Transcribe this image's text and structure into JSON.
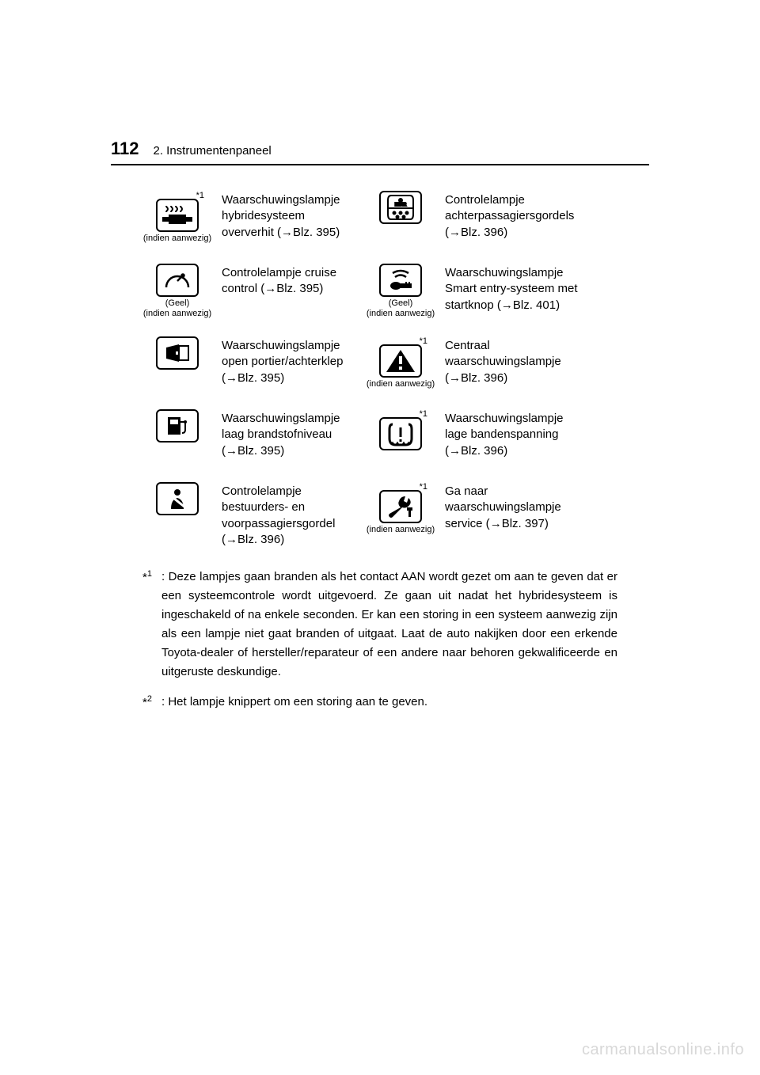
{
  "page": {
    "number": "112",
    "section": "2. Instrumentenpaneel"
  },
  "rows": [
    {
      "left_icon": {
        "type": "hybrid-overheat",
        "super": "*1",
        "caption": "(indien aanwezig)"
      },
      "left_desc": "Waarschuwingslampje hybridesysteem oververhit (→Blz. 395)",
      "right_icon": {
        "type": "rear-seats",
        "super": "",
        "caption": ""
      },
      "right_desc": "Controlelampje achterpassagiersgordels (→Blz. 396)"
    },
    {
      "left_icon": {
        "type": "cruise",
        "super": "",
        "caption": "(Geel) (indien aanwezig)"
      },
      "left_desc": "Controlelampje cruise control (→Blz. 395)",
      "right_icon": {
        "type": "smart-key",
        "super": "",
        "caption": "(Geel) (indien aanwezig)"
      },
      "right_desc": "Waarschuwingslampje Smart entry-systeem met startknop (→Blz. 401)"
    },
    {
      "left_icon": {
        "type": "door-open",
        "super": "",
        "caption": ""
      },
      "left_desc": "Waarschuwingslampje open portier/achterklep (→Blz. 395)",
      "right_icon": {
        "type": "master-warning",
        "super": "*1",
        "caption": "(indien aanwezig)"
      },
      "right_desc": "Centraal waarschuwingslampje (→Blz. 396)"
    },
    {
      "left_icon": {
        "type": "fuel-low",
        "super": "",
        "caption": ""
      },
      "left_desc": "Waarschuwingslampje laag brandstofniveau (→Blz. 395)",
      "right_icon": {
        "type": "tire-pressure",
        "super": "*1",
        "caption": ""
      },
      "right_desc": "Waarschuwingslampje lage bandenspanning (→Blz. 396)"
    },
    {
      "left_icon": {
        "type": "seatbelt",
        "super": "",
        "caption": ""
      },
      "left_desc": "Controlelampje bestuurders- en voorpassagiersgordel (→Blz. 396)",
      "right_icon": {
        "type": "service-wrench",
        "super": "*1",
        "caption": "(indien aanwezig)"
      },
      "right_desc": "Ga naar waarschuwingslampje service (→Blz. 397)"
    }
  ],
  "footnotes": [
    {
      "marker": "*1",
      "text": ": Deze lampjes gaan branden als het contact AAN wordt gezet om aan te geven dat er een systeemcontrole wordt uitgevoerd. Ze gaan uit nadat het hybridesysteem is ingeschakeld of na enkele seconden. Er kan een storing in een systeem aanwezig zijn als een lampje niet gaat branden of uitgaat. Laat de auto nakijken door een erkende Toyota-dealer of hersteller/reparateur of een andere naar behoren gekwalificeerde en uitgeruste deskundige."
    },
    {
      "marker": "*2",
      "text": ": Het lampje knippert om een storing aan te geven."
    }
  ],
  "watermark": "carmanualsonline.info",
  "icons_svg": {
    "hybrid-overheat": "<svg width='40' height='30' viewBox='0 0 40 30'><g stroke='#000' stroke-width='2' fill='none'><path d='M6 3c0 2 2 2 2 4s-2 2-2 4M12 3c0 2 2 2 2 4s-2 2-2 4M18 3c0 2 2 2 2 4s-2 2-2 4M24 3c0 2 2 2 2 4s-2 2-2 4'/><rect x='10' y='15' width='20' height='10' fill='#000'/><rect x='2' y='18' width='8' height='4' fill='#000'/><rect x='30' y='18' width='8' height='4' fill='#000'/></g></svg>",
    "cruise": "<svg width='40' height='30' viewBox='0 0 40 30'><g stroke='#000' stroke-width='2.5' fill='none'><path d='M6 24 A14 14 0 1 1 34 24'/><line x1='20' y1='16' x2='27' y2='9'/><circle cx='27' cy='9' r='1.5' fill='#000'/></g></svg>",
    "door-open": "<svg width='40' height='30' viewBox='0 0 40 30'><g fill='#000'><path d='M6 8 L22 4 L22 26 L6 22 Z'/><rect x='22' y='6' width='12' height='18' stroke='#000' stroke-width='2' fill='none'/><rect x='18' y='13' width='3' height='4' fill='#fff'/></g></svg>",
    "fuel-low": "<svg width='40' height='30' viewBox='0 0 40 30'><g fill='#000'><path d='M8 4 L24 4 L24 26 L8 26 Z'/><rect x='11' y='7' width='10' height='6' fill='#fff'/><path d='M24 10 L30 10 L30 20 Q30 24 26 24' stroke='#000' stroke-width='2' fill='none'/><circle cx='30' cy='10' r='2'/></g></svg>",
    "seatbelt": "<svg width='40' height='30' viewBox='0 0 40 30'><g fill='#000'><circle cx='20' cy='7' r='4'/><path d='M12 28 Q12 16 20 14 Q28 16 28 28 Z'/><line x1='10' y1='10' x2='30' y2='26' stroke='#fff' stroke-width='3'/></g></svg>",
    "rear-seats": "<svg width='40' height='34' viewBox='0 0 40 34'><g stroke='#000' stroke-width='2' fill='none'><path d='M8 2 Q4 2 4 8 L4 26 Q4 32 8 32 L32 32 Q36 32 36 26 L36 8 Q36 2 32 2 Z'/><line x1='4' y1='18' x2='36' y2='18'/><circle cx='20' cy='8' r='2' fill='#000'/><text x='20' y='15' font-size='5' text-anchor='middle' fill='#000' font-family='Arial' font-weight='bold'>REAR</text><circle cx='12' cy='24' r='1.5' fill='#000'/><circle cx='20' cy='24' r='1.5' fill='#000'/><circle cx='28' cy='24' r='1.5' fill='#000'/><circle cx='16' cy='29' r='1.5' fill='#000'/><circle cx='24' cy='29' r='1.5' fill='#000'/></g></svg>",
    "smart-key": "<svg width='40' height='30' viewBox='0 0 40 30'><g stroke='#000' stroke-width='2.5' fill='none'><path d='M10 6 Q20 0 30 6'/><path d='M13 11 Q20 6 27 11'/></g><g fill='#000'><ellipse cx='14' cy='22' rx='7' ry='5'/><rect x='18' y='19' width='16' height='6'/><rect x='30' y='17' width='2' height='3'/><rect x='26' y='17' width='2' height='3'/></g></svg>",
    "master-warning": "<svg width='40' height='32' viewBox='0 0 40 32'><g fill='#000'><path d='M20 2 L38 30 L2 30 Z'/><rect x='18' y='10' width='4' height='10' fill='#fff'/><rect x='18' y='23' width='4' height='4' fill='#fff'/></g></svg>",
    "tire-pressure": "<svg width='40' height='32' viewBox='0 0 40 32'><g stroke='#000' stroke-width='3' fill='none'><path d='M10 4 Q6 4 6 10 L6 22 Q6 30 14 30 L26 30 Q34 30 34 22 L34 10 Q34 4 30 4'/></g><g fill='#000'><rect x='18.5' y='8' width='3' height='12'/><rect x='18.5' y='23' width='3' height='3'/><path d='M8 30 L10 27 L12 30 M14 30 L16 27 L18 30 M22 30 L24 27 L26 30 M28 30 L30 27 L32 30' stroke='#000' stroke-width='1.5'/></g></svg>",
    "service-wrench": "<svg width='40' height='30' viewBox='0 0 40 30'><g fill='#000'><path d='M6 24 Q4 26 6 28 Q8 30 10 28 L22 16 Q28 18 32 12 Q34 8 30 4 L28 10 L24 8 L26 2 Q20 2 18 8 Q16 12 20 16 Z'/><rect x='30' y='20' width='3' height='8'/><rect x='28' y='16' width='7' height='4'/></g></svg>"
  }
}
